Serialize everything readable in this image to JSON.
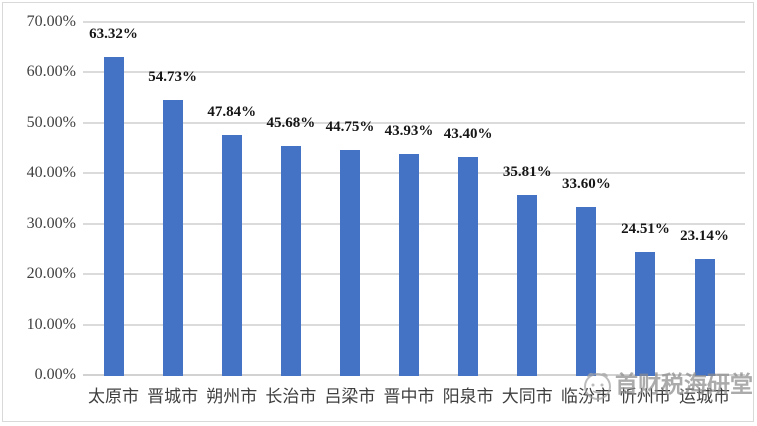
{
  "chart_data": {
    "type": "bar",
    "title": "",
    "legend": "none",
    "grid": true,
    "categories": [
      "太原市",
      "晋城市",
      "朔州市",
      "长治市",
      "吕梁市",
      "晋中市",
      "阳泉市",
      "大同市",
      "临汾市",
      "忻州市",
      "运城市"
    ],
    "values": [
      63.32,
      54.73,
      47.84,
      45.68,
      44.75,
      43.93,
      43.4,
      35.81,
      33.6,
      24.51,
      23.14
    ],
    "data_labels": [
      "63.32%",
      "54.73%",
      "47.84%",
      "45.68%",
      "44.75%",
      "43.93%",
      "43.40%",
      "35.81%",
      "33.60%",
      "24.51%",
      "23.14%"
    ],
    "y_ticks": [
      {
        "label": "70.00%",
        "value": 70
      },
      {
        "label": "60.00%",
        "value": 60
      },
      {
        "label": "50.00%",
        "value": 50
      },
      {
        "label": "40.00%",
        "value": 40
      },
      {
        "label": "30.00%",
        "value": 30
      },
      {
        "label": "20.00%",
        "value": 20
      },
      {
        "label": "10.00%",
        "value": 10
      },
      {
        "label": "0.00%",
        "value": 0
      }
    ],
    "ylim": [
      0,
      70
    ],
    "xlabel": "",
    "ylabel": ""
  },
  "watermark": {
    "icon": "face-logo-icon",
    "text": "首财税海研堂"
  },
  "colors": {
    "background": "#FFFFFF",
    "bar": "#4472C4",
    "gridline": "#DBDBDB",
    "axis_line": "#D2D2D2",
    "data_label": "#161616",
    "axis_text": "#3F3F3F",
    "border": "#D9D9D9",
    "watermark": "#8C8C8C"
  }
}
